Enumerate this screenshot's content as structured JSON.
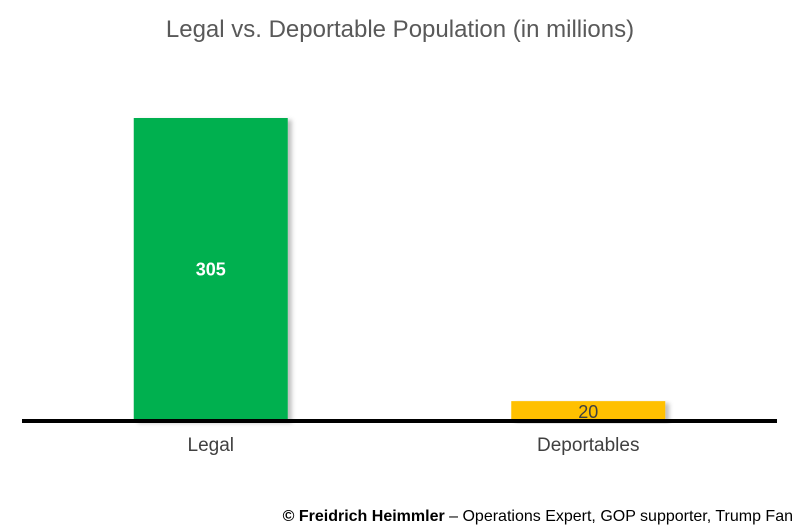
{
  "chart_data": {
    "type": "bar",
    "title": "Legal vs. Deportable Population (in millions)",
    "categories": [
      "Legal",
      "Deportables"
    ],
    "values": [
      305,
      20
    ],
    "data_labels": [
      "305",
      "20"
    ],
    "colors": [
      "#00B050",
      "#FFC000"
    ],
    "label_colors": [
      "#FFFFFF",
      "#404040"
    ],
    "axis_color": "#000000",
    "xlabel": "",
    "ylabel": "",
    "ylim": [
      0,
      305
    ],
    "grid": false,
    "legend": "none"
  },
  "footer": {
    "author": "© Freidrich Heimmler",
    "description": " – Operations Expert, GOP supporter, Trump Fan"
  }
}
